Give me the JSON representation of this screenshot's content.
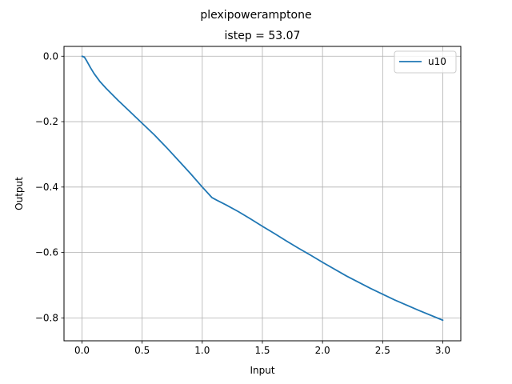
{
  "chart_data": {
    "type": "line",
    "suptitle": "plexipoweramptone",
    "title": "istep = 53.07",
    "xlabel": "Input",
    "ylabel": "Output",
    "xlim": [
      -0.15,
      3.15
    ],
    "ylim": [
      -0.87,
      0.03
    ],
    "xticks": [
      0.0,
      0.5,
      1.0,
      1.5,
      2.0,
      2.5,
      3.0
    ],
    "xtick_labels": [
      "0.0",
      "0.5",
      "1.0",
      "1.5",
      "2.0",
      "2.5",
      "3.0"
    ],
    "yticks": [
      0.0,
      -0.2,
      -0.4,
      -0.6,
      -0.8
    ],
    "ytick_labels": [
      "0.0",
      "−0.2",
      "−0.4",
      "−0.6",
      "−0.8"
    ],
    "grid": true,
    "legend_position": "top-right",
    "series": [
      {
        "name": "u10",
        "color": "#1f77b4",
        "x": [
          0.0,
          0.02,
          0.04,
          0.07,
          0.1,
          0.15,
          0.2,
          0.3,
          0.4,
          0.5,
          0.6,
          0.7,
          0.8,
          0.9,
          1.0,
          1.05,
          1.08,
          1.12,
          1.2,
          1.3,
          1.4,
          1.5,
          1.6,
          1.7,
          1.8,
          1.9,
          2.0,
          2.2,
          2.4,
          2.6,
          2.8,
          3.0
        ],
        "y": [
          0.0,
          -0.003,
          -0.015,
          -0.035,
          -0.053,
          -0.078,
          -0.098,
          -0.135,
          -0.17,
          -0.205,
          -0.24,
          -0.278,
          -0.318,
          -0.358,
          -0.4,
          -0.42,
          -0.432,
          -0.44,
          -0.455,
          -0.475,
          -0.497,
          -0.52,
          -0.542,
          -0.565,
          -0.587,
          -0.608,
          -0.63,
          -0.672,
          -0.71,
          -0.745,
          -0.777,
          -0.807
        ]
      }
    ]
  }
}
